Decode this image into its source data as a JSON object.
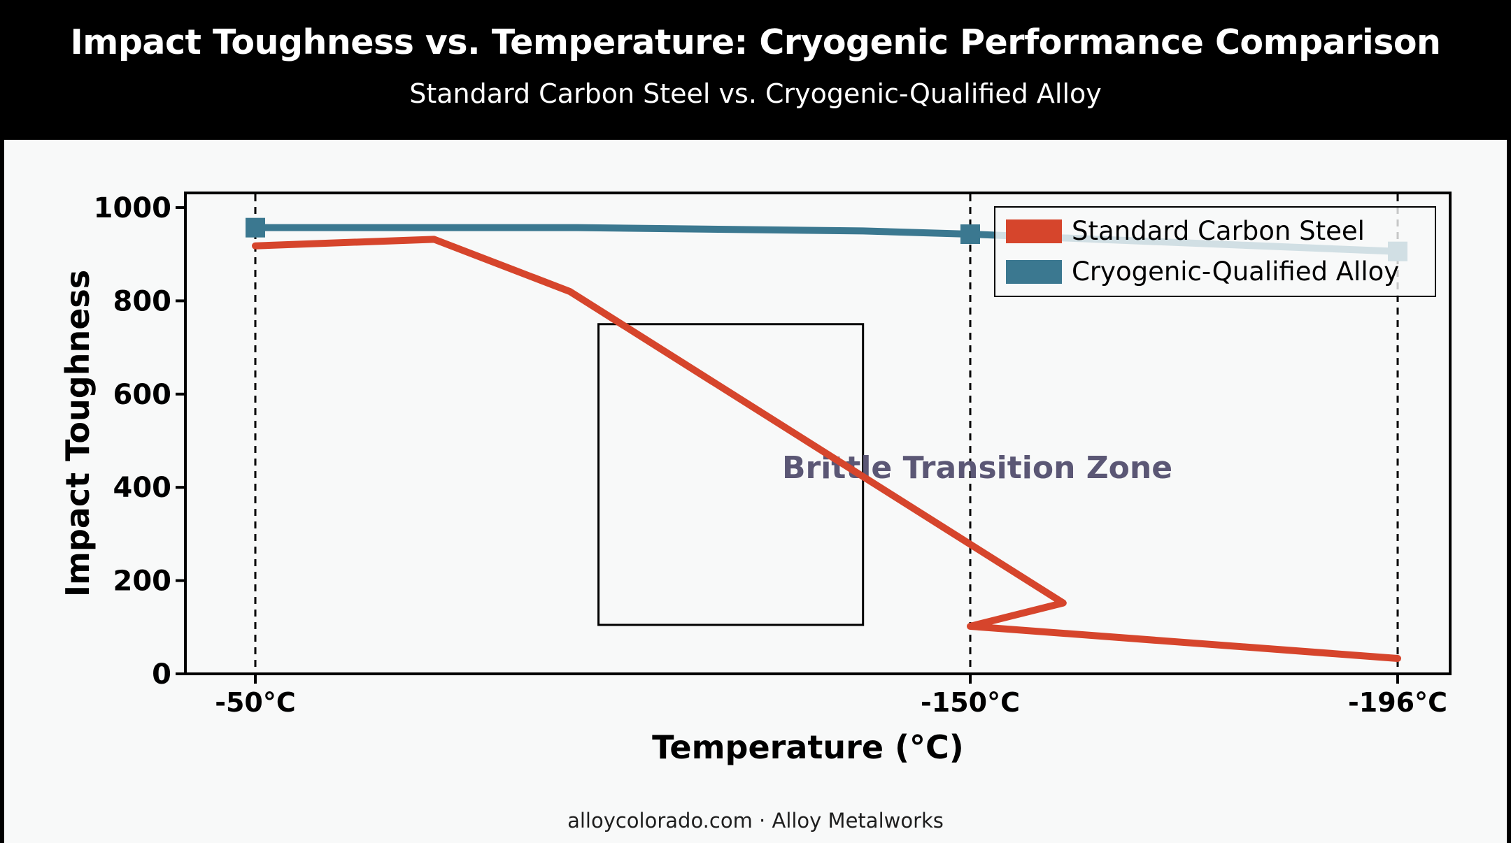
{
  "header": {
    "title": "Impact Toughness vs. Temperature: Cryogenic Performance Comparison",
    "subtitle": "Standard Carbon Steel vs. Cryogenic-Qualified Alloy"
  },
  "footer": {
    "text": "alloycolorado.com · Alloy Metalworks"
  },
  "chart_data": {
    "type": "line",
    "title": "Impact Toughness vs. Temperature: Cryogenic Performance Comparison",
    "subtitle": "Standard Carbon Steel vs. Cryogenic-Qualified Alloy",
    "xlabel": "Temperature (°C)",
    "ylabel": "Impact Toughness",
    "xlim": [
      -40,
      -200
    ],
    "ylim": [
      0,
      1000
    ],
    "x_ticks": [
      {
        "value": -50,
        "label": "-50°C"
      },
      {
        "value": -150,
        "label": "-150°C"
      },
      {
        "value": -196,
        "label": "-196°C"
      }
    ],
    "y_ticks": [
      0,
      200,
      400,
      600,
      800,
      1000
    ],
    "reference_lines_x": [
      -50,
      -150,
      -196
    ],
    "grid": false,
    "legend_position": "top-right",
    "series": [
      {
        "name": "Standard Carbon Steel",
        "color": "#d6452c",
        "x": [
          -50,
          -75,
          -94,
          -160,
          -150,
          -196
        ],
        "y": [
          918,
          932,
          820,
          152,
          102,
          33
        ],
        "markers": []
      },
      {
        "name": "Cryogenic-Qualified Alloy",
        "color": "#3b7890",
        "x": [
          -50,
          -95,
          -135,
          -150,
          -196
        ],
        "y": [
          957,
          957,
          950,
          943,
          906
        ],
        "markers": [
          -50,
          -150,
          -196
        ]
      }
    ],
    "annotations": [
      {
        "text": "Brittle Transition Zone",
        "color": "#5b5775",
        "box_x": [
          -98,
          -135
        ],
        "box_y": [
          105,
          750
        ]
      }
    ]
  }
}
